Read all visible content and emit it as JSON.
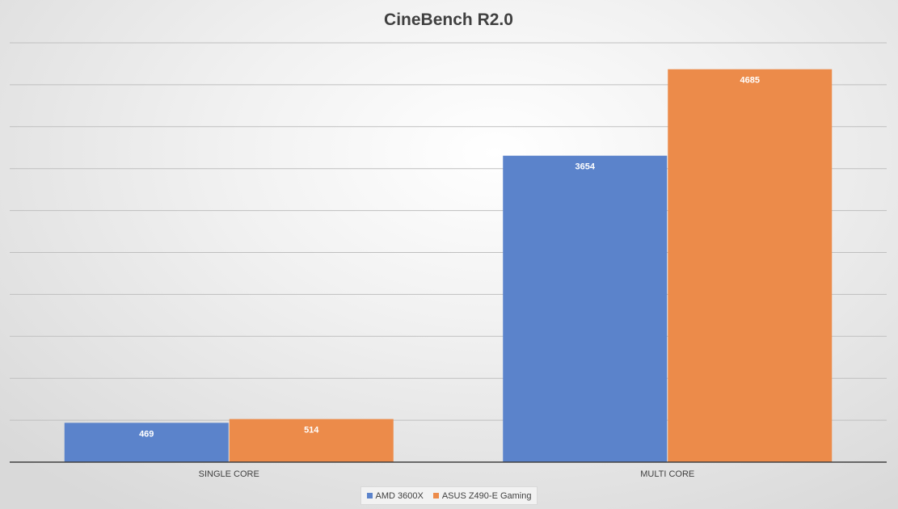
{
  "chart_data": {
    "type": "bar",
    "title": "CineBench R2.0",
    "xlabel": "",
    "ylabel": "",
    "categories": [
      "SINGLE CORE",
      "MULTI CORE"
    ],
    "series": [
      {
        "name": "AMD 3600X",
        "values": [
          469,
          3654
        ],
        "color": "#5b83cb"
      },
      {
        "name": "ASUS Z490-E Gaming",
        "values": [
          514,
          4685
        ],
        "color": "#ec8b4a"
      }
    ],
    "ylim": [
      0,
      5000
    ],
    "y_tick_step": 500,
    "y_tick_labels_visible": false,
    "grid": true,
    "legend_position": "bottom-center"
  }
}
